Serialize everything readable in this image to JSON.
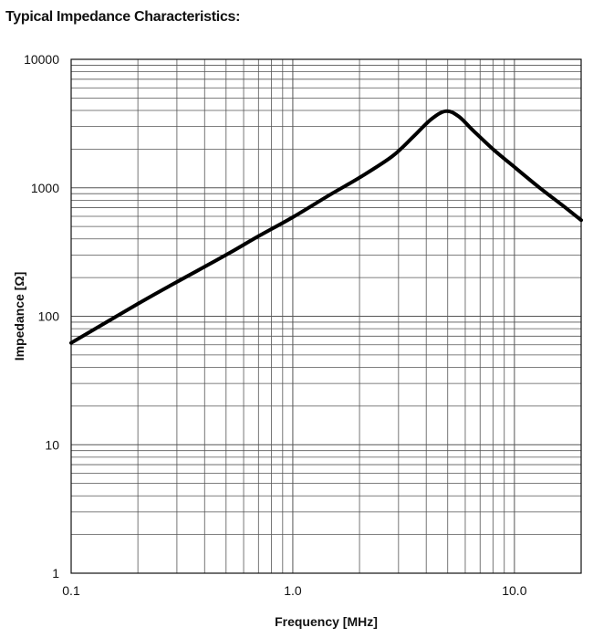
{
  "chart_data": {
    "type": "line",
    "title": "Typical Impedance Characteristics:",
    "xlabel": "Frequency [MHz]",
    "ylabel": "Impedance [Ω]",
    "x_scale": "log",
    "y_scale": "log",
    "xlim": [
      0.1,
      20
    ],
    "ylim": [
      1,
      10000
    ],
    "grid": true,
    "x_ticks": [
      {
        "value": 0.1,
        "label": "0.1"
      },
      {
        "value": 1,
        "label": "1.0"
      },
      {
        "value": 10,
        "label": "10.0"
      }
    ],
    "y_ticks": [
      {
        "value": 1,
        "label": "1"
      },
      {
        "value": 10,
        "label": "10"
      },
      {
        "value": 100,
        "label": "100"
      },
      {
        "value": 1000,
        "label": "1000"
      },
      {
        "value": 10000,
        "label": "10000"
      }
    ],
    "series": [
      {
        "color": "#000000",
        "x": [
          0.1,
          0.2,
          0.3,
          0.5,
          0.7,
          1.0,
          1.5,
          2.0,
          2.8,
          3.5,
          4.2,
          4.9,
          5.6,
          6.5,
          8.0,
          10.0,
          13.0,
          17.0,
          20.0
        ],
        "y": [
          62,
          125,
          185,
          300,
          420,
          590,
          900,
          1200,
          1750,
          2500,
          3400,
          3950,
          3600,
          2800,
          2000,
          1450,
          1000,
          700,
          560
        ]
      }
    ]
  }
}
